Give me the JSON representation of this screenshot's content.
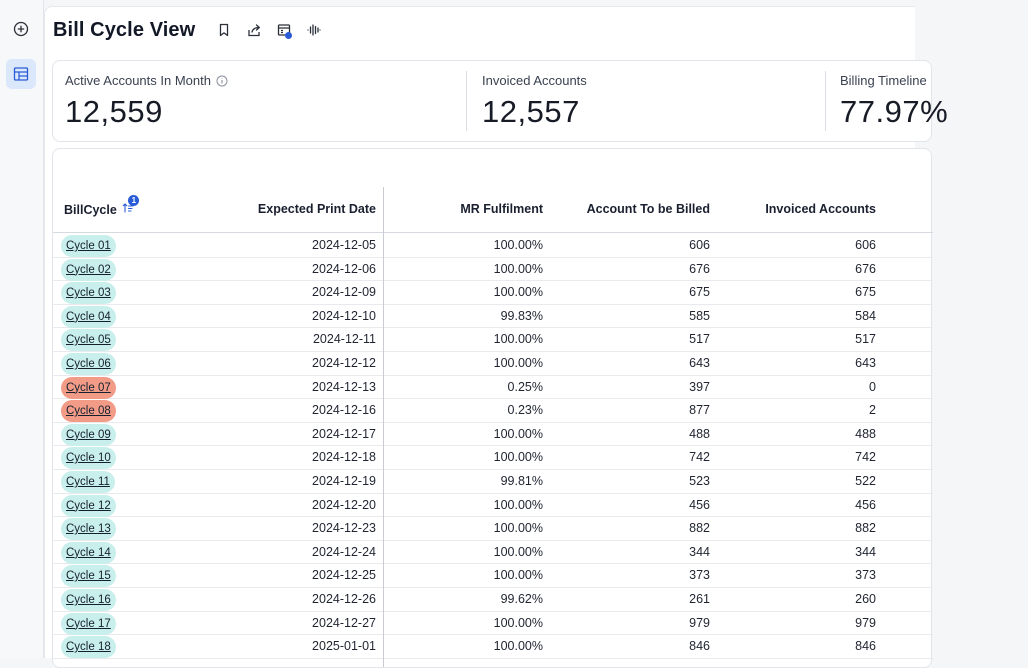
{
  "header": {
    "title": "Bill Cycle View"
  },
  "kpis": [
    {
      "label": "Active Accounts In Month",
      "value": "12,559",
      "has_info": true
    },
    {
      "label": "Invoiced Accounts",
      "value": "12,557",
      "has_info": false
    },
    {
      "label": "Billing Timeline",
      "value": "77.97%",
      "has_info": false
    }
  ],
  "table": {
    "sort_badge": "1",
    "columns": [
      "BillCycle",
      "Expected Print Date",
      "MR Fulfilment",
      "Account To be Billed",
      "Invoiced Accounts"
    ],
    "rows": [
      {
        "cycle": "Cycle 01",
        "date": "2024-12-05",
        "mr": "100.00%",
        "to_bill": "606",
        "invoiced": "606",
        "status": "ok"
      },
      {
        "cycle": "Cycle 02",
        "date": "2024-12-06",
        "mr": "100.00%",
        "to_bill": "676",
        "invoiced": "676",
        "status": "ok"
      },
      {
        "cycle": "Cycle 03",
        "date": "2024-12-09",
        "mr": "100.00%",
        "to_bill": "675",
        "invoiced": "675",
        "status": "ok"
      },
      {
        "cycle": "Cycle 04",
        "date": "2024-12-10",
        "mr": "99.83%",
        "to_bill": "585",
        "invoiced": "584",
        "status": "ok"
      },
      {
        "cycle": "Cycle 05",
        "date": "2024-12-11",
        "mr": "100.00%",
        "to_bill": "517",
        "invoiced": "517",
        "status": "ok"
      },
      {
        "cycle": "Cycle 06",
        "date": "2024-12-12",
        "mr": "100.00%",
        "to_bill": "643",
        "invoiced": "643",
        "status": "ok"
      },
      {
        "cycle": "Cycle 07",
        "date": "2024-12-13",
        "mr": "0.25%",
        "to_bill": "397",
        "invoiced": "0",
        "status": "bad"
      },
      {
        "cycle": "Cycle 08",
        "date": "2024-12-16",
        "mr": "0.23%",
        "to_bill": "877",
        "invoiced": "2",
        "status": "bad"
      },
      {
        "cycle": "Cycle 09",
        "date": "2024-12-17",
        "mr": "100.00%",
        "to_bill": "488",
        "invoiced": "488",
        "status": "ok"
      },
      {
        "cycle": "Cycle 10",
        "date": "2024-12-18",
        "mr": "100.00%",
        "to_bill": "742",
        "invoiced": "742",
        "status": "ok"
      },
      {
        "cycle": "Cycle 11",
        "date": "2024-12-19",
        "mr": "99.81%",
        "to_bill": "523",
        "invoiced": "522",
        "status": "ok"
      },
      {
        "cycle": "Cycle 12",
        "date": "2024-12-20",
        "mr": "100.00%",
        "to_bill": "456",
        "invoiced": "456",
        "status": "ok"
      },
      {
        "cycle": "Cycle 13",
        "date": "2024-12-23",
        "mr": "100.00%",
        "to_bill": "882",
        "invoiced": "882",
        "status": "ok"
      },
      {
        "cycle": "Cycle 14",
        "date": "2024-12-24",
        "mr": "100.00%",
        "to_bill": "344",
        "invoiced": "344",
        "status": "ok"
      },
      {
        "cycle": "Cycle 15",
        "date": "2024-12-25",
        "mr": "100.00%",
        "to_bill": "373",
        "invoiced": "373",
        "status": "ok"
      },
      {
        "cycle": "Cycle 16",
        "date": "2024-12-26",
        "mr": "99.62%",
        "to_bill": "261",
        "invoiced": "260",
        "status": "ok"
      },
      {
        "cycle": "Cycle 17",
        "date": "2024-12-27",
        "mr": "100.00%",
        "to_bill": "979",
        "invoiced": "979",
        "status": "ok"
      },
      {
        "cycle": "Cycle 18",
        "date": "2025-01-01",
        "mr": "100.00%",
        "to_bill": "846",
        "invoiced": "846",
        "status": "ok"
      }
    ]
  },
  "colors": {
    "ok": "#c9efec",
    "bad": "#f29c88",
    "accent": "#2a5bd7"
  }
}
